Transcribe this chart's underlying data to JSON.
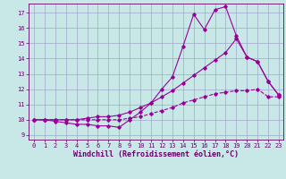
{
  "xlabel": "Windchill (Refroidissement éolien,°C)",
  "ylabel": "",
  "background_color": "#c8e8e8",
  "grid_color": "#a0a8c8",
  "line_color": "#990099",
  "xlim": [
    -0.5,
    23.4
  ],
  "ylim": [
    8.7,
    17.6
  ],
  "xticks": [
    0,
    1,
    2,
    3,
    4,
    5,
    6,
    7,
    8,
    9,
    10,
    11,
    12,
    13,
    14,
    15,
    16,
    17,
    18,
    19,
    20,
    21,
    22,
    23
  ],
  "yticks": [
    9,
    10,
    11,
    12,
    13,
    14,
    15,
    16,
    17
  ],
  "line1_x": [
    0,
    1,
    2,
    3,
    4,
    5,
    6,
    7,
    8,
    9,
    10,
    11,
    12,
    13,
    14,
    15,
    16,
    17,
    18,
    19,
    20,
    21,
    22,
    23
  ],
  "line1_y": [
    10.0,
    10.0,
    9.9,
    9.8,
    9.7,
    9.7,
    9.6,
    9.6,
    9.5,
    10.0,
    10.5,
    11.1,
    12.0,
    12.8,
    14.8,
    16.9,
    15.9,
    17.2,
    17.4,
    15.5,
    14.1,
    13.8,
    12.5,
    11.6
  ],
  "line2_x": [
    0,
    1,
    2,
    3,
    4,
    5,
    6,
    7,
    8,
    9,
    10,
    11,
    12,
    13,
    14,
    15,
    16,
    17,
    18,
    19,
    20,
    21,
    22,
    23
  ],
  "line2_y": [
    10.0,
    10.0,
    10.0,
    10.0,
    10.0,
    10.1,
    10.2,
    10.2,
    10.3,
    10.5,
    10.8,
    11.1,
    11.5,
    11.9,
    12.4,
    12.9,
    13.4,
    13.9,
    14.4,
    15.3,
    14.1,
    13.8,
    12.5,
    11.6
  ],
  "line3_x": [
    0,
    1,
    2,
    3,
    4,
    5,
    6,
    7,
    8,
    9,
    10,
    11,
    12,
    13,
    14,
    15,
    16,
    17,
    18,
    19,
    20,
    21,
    22,
    23
  ],
  "line3_y": [
    10.0,
    10.0,
    10.0,
    10.0,
    10.0,
    10.0,
    10.0,
    10.0,
    10.0,
    10.1,
    10.2,
    10.4,
    10.6,
    10.8,
    11.1,
    11.3,
    11.5,
    11.7,
    11.8,
    11.9,
    11.9,
    12.0,
    11.5,
    11.5
  ],
  "marker_size": 1.8,
  "line_width": 0.8,
  "tick_label_fontsize": 5.0,
  "xlabel_fontsize": 6.0
}
